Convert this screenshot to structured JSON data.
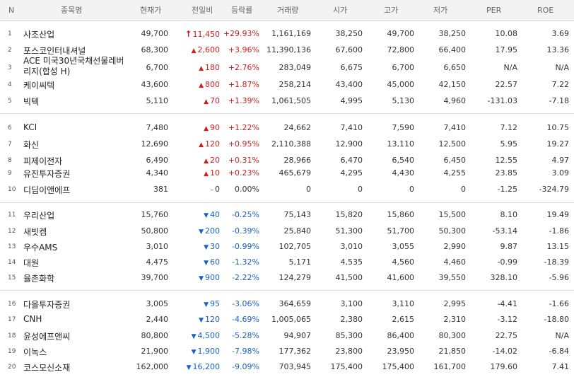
{
  "header": {
    "n": "N",
    "name": "종목명",
    "price": "현재가",
    "change": "전일비",
    "rate": "등락률",
    "volume": "거래량",
    "open": "시가",
    "high": "고가",
    "low": "저가",
    "per": "PER",
    "roe": "ROE"
  },
  "colors": {
    "up": "#d21d1d",
    "down": "#1a5fc9"
  },
  "rows": [
    {
      "n": "1",
      "name": "사조산업",
      "price": "49,700",
      "dir": "limit-up",
      "change": "11,450",
      "rate": "+29.93%",
      "volume": "1,161,169",
      "open": "38,250",
      "high": "49,700",
      "low": "38,250",
      "per": "10.08",
      "roe": "3.69"
    },
    {
      "n": "2",
      "name": "포스코인터내셔널",
      "price": "68,300",
      "dir": "up",
      "change": "2,600",
      "rate": "+3.96%",
      "volume": "11,390,136",
      "open": "67,600",
      "high": "72,800",
      "low": "66,400",
      "per": "17.95",
      "roe": "13.36"
    },
    {
      "n": "3",
      "name": "ACE 미국30년국채선물레버리지(합성 H)",
      "name1": "ACE 미국30년국채선물레버",
      "name2": "리지(합성 H)",
      "price": "6,700",
      "dir": "up",
      "change": "180",
      "rate": "+2.76%",
      "volume": "283,049",
      "open": "6,675",
      "high": "6,700",
      "low": "6,650",
      "per": "N/A",
      "roe": "N/A"
    },
    {
      "n": "4",
      "name": "케이씨텍",
      "price": "43,600",
      "dir": "up",
      "change": "800",
      "rate": "+1.87%",
      "volume": "258,214",
      "open": "43,400",
      "high": "45,000",
      "low": "42,150",
      "per": "22.57",
      "roe": "7.22"
    },
    {
      "n": "5",
      "name": "빅텍",
      "price": "5,110",
      "dir": "up",
      "change": "70",
      "rate": "+1.39%",
      "volume": "1,061,505",
      "open": "4,995",
      "high": "5,130",
      "low": "4,960",
      "per": "-131.03",
      "roe": "-7.18"
    },
    {
      "n": "6",
      "name": "KCI",
      "price": "7,480",
      "dir": "up",
      "change": "90",
      "rate": "+1.22%",
      "volume": "24,662",
      "open": "7,410",
      "high": "7,590",
      "low": "7,410",
      "per": "7.12",
      "roe": "10.75"
    },
    {
      "n": "7",
      "name": "화신",
      "price": "12,690",
      "dir": "up",
      "change": "120",
      "rate": "+0.95%",
      "volume": "2,110,388",
      "open": "12,900",
      "high": "13,110",
      "low": "12,500",
      "per": "5.95",
      "roe": "19.27"
    },
    {
      "n": "8",
      "name": "피제이전자",
      "price": "6,490",
      "dir": "up",
      "change": "20",
      "rate": "+0.31%",
      "volume": "28,966",
      "open": "6,470",
      "high": "6,540",
      "low": "6,450",
      "per": "12.55",
      "roe": "4.97"
    },
    {
      "n": "9",
      "name": "유진투자증권",
      "price": "4,340",
      "dir": "up",
      "change": "10",
      "rate": "+0.23%",
      "volume": "465,679",
      "open": "4,295",
      "high": "4,430",
      "low": "4,255",
      "per": "23.85",
      "roe": "3.09"
    },
    {
      "n": "10",
      "name": "디딤이앤에프",
      "price": "381",
      "dir": "flat",
      "change": "0",
      "rate": "0.00%",
      "volume": "0",
      "open": "0",
      "high": "0",
      "low": "0",
      "per": "-1.25",
      "roe": "-324.79"
    },
    {
      "n": "11",
      "name": "우리산업",
      "price": "15,760",
      "dir": "down",
      "change": "40",
      "rate": "-0.25%",
      "volume": "75,143",
      "open": "15,820",
      "high": "15,860",
      "low": "15,500",
      "per": "8.10",
      "roe": "19.49"
    },
    {
      "n": "12",
      "name": "새빗켐",
      "price": "50,800",
      "dir": "down",
      "change": "200",
      "rate": "-0.39%",
      "volume": "25,840",
      "open": "51,300",
      "high": "51,700",
      "low": "50,300",
      "per": "-53.14",
      "roe": "-1.86"
    },
    {
      "n": "13",
      "name": "우수AMS",
      "price": "3,010",
      "dir": "down",
      "change": "30",
      "rate": "-0.99%",
      "volume": "102,705",
      "open": "3,010",
      "high": "3,055",
      "low": "2,990",
      "per": "9.87",
      "roe": "13.15"
    },
    {
      "n": "14",
      "name": "대원",
      "price": "4,475",
      "dir": "down",
      "change": "60",
      "rate": "-1.32%",
      "volume": "5,171",
      "open": "4,535",
      "high": "4,560",
      "low": "4,460",
      "per": "-0.99",
      "roe": "-18.39"
    },
    {
      "n": "15",
      "name": "율촌화학",
      "price": "39,700",
      "dir": "down",
      "change": "900",
      "rate": "-2.22%",
      "volume": "124,279",
      "open": "41,500",
      "high": "41,600",
      "low": "39,550",
      "per": "328.10",
      "roe": "-5.96"
    },
    {
      "n": "16",
      "name": "다올투자증권",
      "price": "3,005",
      "dir": "down",
      "change": "95",
      "rate": "-3.06%",
      "volume": "364,659",
      "open": "3,100",
      "high": "3,110",
      "low": "2,995",
      "per": "-4.41",
      "roe": "-1.66"
    },
    {
      "n": "17",
      "name": "CNH",
      "price": "2,440",
      "dir": "down",
      "change": "120",
      "rate": "-4.69%",
      "volume": "1,005,065",
      "open": "2,380",
      "high": "2,615",
      "low": "2,310",
      "per": "-3.12",
      "roe": "-18.80"
    },
    {
      "n": "18",
      "name": "윤성에프앤씨",
      "price": "80,800",
      "dir": "down",
      "change": "4,500",
      "rate": "-5.28%",
      "volume": "94,907",
      "open": "85,300",
      "high": "86,400",
      "low": "80,300",
      "per": "22.75",
      "roe": "N/A"
    },
    {
      "n": "19",
      "name": "이녹스",
      "price": "21,900",
      "dir": "down",
      "change": "1,900",
      "rate": "-7.98%",
      "volume": "177,362",
      "open": "23,800",
      "high": "23,950",
      "low": "21,850",
      "per": "-14.02",
      "roe": "-6.84"
    },
    {
      "n": "20",
      "name": "코스모신소재",
      "price": "162,000",
      "dir": "down",
      "change": "16,200",
      "rate": "-9.09%",
      "volume": "703,945",
      "open": "175,400",
      "high": "175,400",
      "low": "161,700",
      "per": "179.60",
      "roe": "7.41"
    }
  ]
}
